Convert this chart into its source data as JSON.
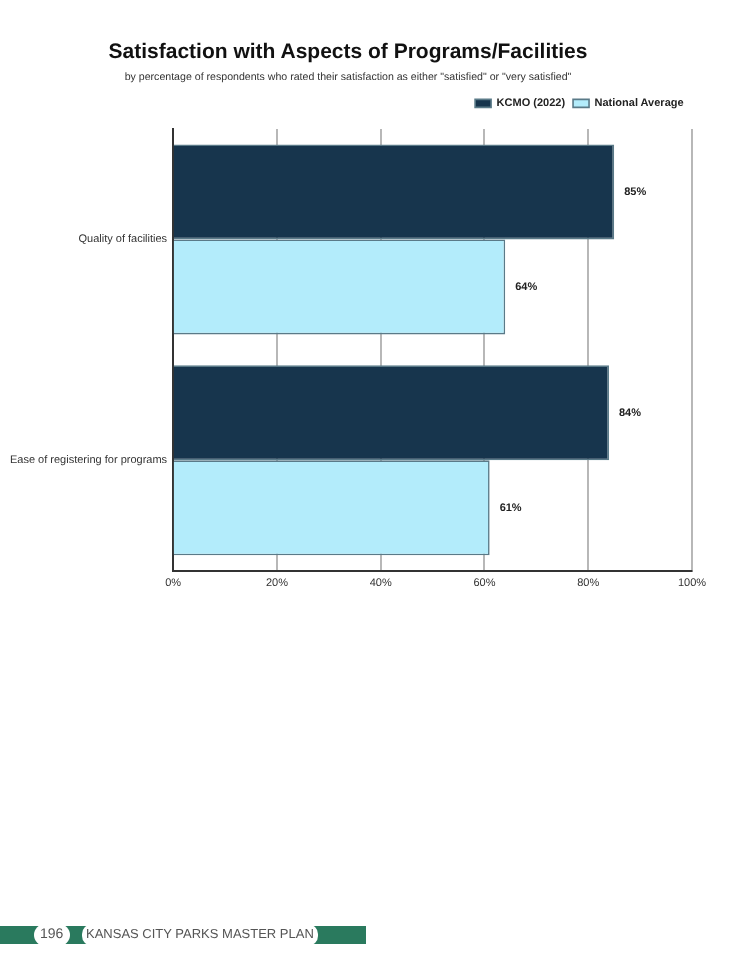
{
  "chart_data": {
    "type": "bar",
    "orientation": "horizontal",
    "title": "Satisfaction with Aspects of Programs/Facilities",
    "subtitle": "by percentage of respondents who rated their satisfaction as either \"satisfied\" or \"very satisfied\"",
    "categories": [
      "Quality of facilities",
      "Ease of registering for programs"
    ],
    "series": [
      {
        "name": "KCMO (2022)",
        "color": "#17354d",
        "values": [
          85,
          84
        ],
        "value_labels": [
          "85%",
          "84%"
        ]
      },
      {
        "name": "National Average",
        "color": "#b3ecfb",
        "values": [
          64,
          61
        ],
        "value_labels": [
          "64%",
          "61%"
        ]
      }
    ],
    "xlim": [
      0,
      100
    ],
    "xticks": [
      {
        "value": 0,
        "label": "0%"
      },
      {
        "value": 20,
        "label": "20%"
      },
      {
        "value": 40,
        "label": "40%"
      },
      {
        "value": 60,
        "label": "60%"
      },
      {
        "value": 80,
        "label": "80%"
      },
      {
        "value": 100,
        "label": "100%"
      }
    ],
    "grid": "x",
    "legend": "top right",
    "annotations": [
      "196",
      "KANSAS CITY PARKS MASTER PLAN"
    ]
  }
}
